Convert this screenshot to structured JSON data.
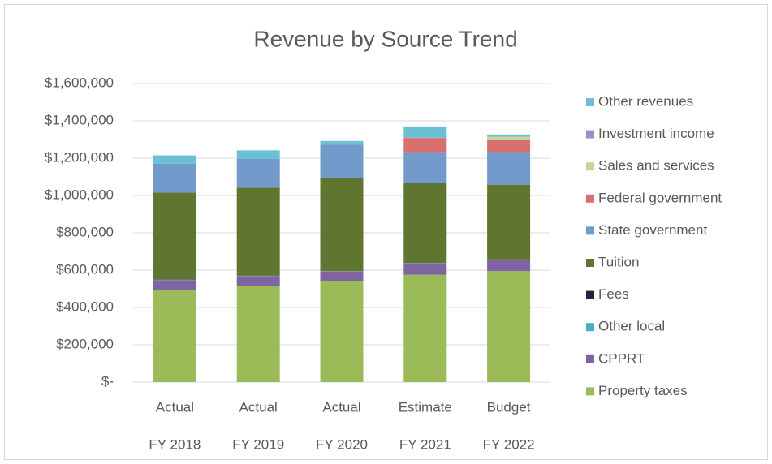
{
  "chart_data": {
    "type": "stacked_bar",
    "title": "Revenue by Source Trend",
    "categories": [
      "Actual",
      "Actual",
      "Actual",
      "Estimate",
      "Budget"
    ],
    "sub_categories": [
      "FY 2018",
      "FY 2019",
      "FY 2020",
      "FY 2021",
      "FY 2022"
    ],
    "series": [
      {
        "name": "Property taxes",
        "color": "#9bbb59",
        "values": [
          495000,
          515000,
          540000,
          575000,
          595000
        ]
      },
      {
        "name": "CPPRT",
        "color": "#8064a2",
        "values": [
          52000,
          52000,
          52000,
          60000,
          60000
        ]
      },
      {
        "name": "Other local",
        "color": "#4bacc6",
        "values": [
          2000,
          2000,
          2000,
          2000,
          2000
        ]
      },
      {
        "name": "Fees",
        "color": "#2c1e40",
        "values": [
          1000,
          1000,
          1000,
          1000,
          1000
        ]
      },
      {
        "name": "Tuition",
        "color": "#5f7530",
        "values": [
          465000,
          472000,
          497000,
          430000,
          400000
        ]
      },
      {
        "name": "State government",
        "color": "#729aca",
        "values": [
          155000,
          155000,
          180000,
          165000,
          175000
        ]
      },
      {
        "name": "Federal government",
        "color": "#d9706e",
        "values": [
          0,
          0,
          0,
          75000,
          65000
        ]
      },
      {
        "name": "Sales and services",
        "color": "#c3d69b",
        "values": [
          0,
          0,
          0,
          0,
          17000
        ]
      },
      {
        "name": "Investment income",
        "color": "#a08cc0",
        "values": [
          0,
          0,
          0,
          2000,
          2000
        ]
      },
      {
        "name": "Other revenues",
        "color": "#6bc1d3",
        "values": [
          45000,
          45000,
          20000,
          60000,
          10000
        ]
      }
    ],
    "ylim": [
      0,
      1600000
    ],
    "yticks": [
      {
        "value": 0,
        "label": "$-"
      },
      {
        "value": 200000,
        "label": "$200,000"
      },
      {
        "value": 400000,
        "label": "$400,000"
      },
      {
        "value": 600000,
        "label": "$600,000"
      },
      {
        "value": 800000,
        "label": "$800,000"
      },
      {
        "value": 1000000,
        "label": "$1,000,000"
      },
      {
        "value": 1200000,
        "label": "$1,200,000"
      },
      {
        "value": 1400000,
        "label": "$1,400,000"
      },
      {
        "value": 1600000,
        "label": "$1,600,000"
      }
    ],
    "grid": true,
    "legend": "right"
  }
}
